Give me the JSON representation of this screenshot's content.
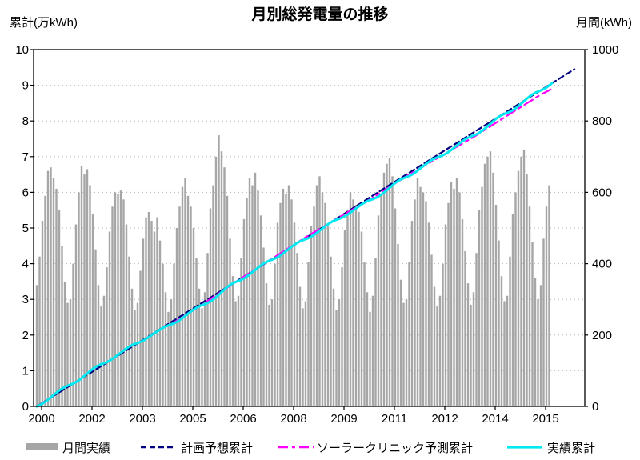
{
  "header": {
    "title": "月別総発電量の推移",
    "left_axis_corner_label": "累計(万kWh)",
    "right_axis_corner_label": "月間(kWh)"
  },
  "chart_data": {
    "type": "combo",
    "title": "月別総発電量の推移",
    "grid": true,
    "legend_position": "bottom",
    "left_axis": {
      "label": "累計(万kWh)",
      "min": 0,
      "max": 10,
      "tick_step": 1,
      "tick_labels": [
        "0",
        "1",
        "2",
        "3",
        "4",
        "5",
        "6",
        "7",
        "8",
        "9",
        "10"
      ]
    },
    "right_axis": {
      "label": "月間(kWh)",
      "min": 0,
      "max": 1000,
      "tick_step": 200,
      "tick_labels": [
        "0",
        "200",
        "400",
        "600",
        "800",
        "1000"
      ]
    },
    "x_axis": {
      "start": "2000-01",
      "end_bars": "2015-04",
      "tick_labels": [
        "2000",
        "2002",
        "2003",
        "2005",
        "2006",
        "2008",
        "2009",
        "2011",
        "2012",
        "2014",
        "2015"
      ]
    },
    "series": [
      {
        "name": "月間実績",
        "type": "bar",
        "axis": "right",
        "color": "#a6a6a6",
        "start_month": "2000-01",
        "values_kwh": [
          340,
          420,
          520,
          590,
          660,
          670,
          640,
          610,
          550,
          450,
          350,
          290,
          300,
          400,
          510,
          600,
          675,
          650,
          665,
          620,
          540,
          440,
          340,
          280,
          310,
          390,
          490,
          560,
          600,
          595,
          605,
          580,
          510,
          420,
          330,
          270,
          290,
          380,
          470,
          530,
          545,
          520,
          490,
          530,
          465,
          400,
          320,
          265,
          300,
          400,
          500,
          560,
          615,
          640,
          590,
          560,
          500,
          415,
          330,
          275,
          320,
          430,
          555,
          620,
          700,
          760,
          715,
          670,
          590,
          470,
          365,
          295,
          310,
          415,
          525,
          585,
          640,
          620,
          655,
          605,
          535,
          445,
          345,
          285,
          300,
          400,
          515,
          570,
          610,
          595,
          620,
          580,
          515,
          430,
          335,
          275,
          295,
          405,
          505,
          560,
          620,
          645,
          600,
          570,
          505,
          420,
          330,
          270,
          300,
          390,
          495,
          550,
          600,
          580,
          565,
          545,
          490,
          405,
          320,
          265,
          310,
          415,
          535,
          595,
          655,
          680,
          695,
          645,
          555,
          455,
          355,
          290,
          300,
          405,
          520,
          580,
          640,
          615,
          600,
          575,
          515,
          425,
          335,
          280,
          310,
          400,
          510,
          570,
          630,
          610,
          640,
          600,
          525,
          435,
          345,
          285,
          320,
          430,
          550,
          615,
          680,
          700,
          715,
          655,
          565,
          465,
          365,
          295,
          310,
          420,
          540,
          600,
          660,
          700,
          720,
          650,
          560,
          460,
          360,
          300,
          340,
          470,
          560,
          620
        ]
      },
      {
        "name": "計画予想累計",
        "type": "line",
        "style": "dashed",
        "axis": "left",
        "color": "#000080",
        "points": [
          [
            2000.0,
            0
          ],
          [
            2001,
            0.59
          ],
          [
            2002,
            1.18
          ],
          [
            2003,
            1.77
          ],
          [
            2004,
            2.36
          ],
          [
            2005,
            2.95
          ],
          [
            2006,
            3.54
          ],
          [
            2007,
            4.13
          ],
          [
            2008,
            4.72
          ],
          [
            2009,
            5.31
          ],
          [
            2010,
            5.91
          ],
          [
            2011,
            6.5
          ],
          [
            2012,
            7.09
          ],
          [
            2013,
            7.68
          ],
          [
            2014,
            8.27
          ],
          [
            2015,
            8.86
          ],
          [
            2016,
            9.45
          ]
        ]
      },
      {
        "name": "ソーラークリニック予測累計",
        "type": "line",
        "style": "dash-dot",
        "axis": "left",
        "color": "#ff00ff",
        "points": [
          [
            2004.0,
            2.3
          ],
          [
            2005,
            2.9
          ],
          [
            2006,
            3.54
          ],
          [
            2007,
            4.14
          ],
          [
            2008,
            4.74
          ],
          [
            2009,
            5.3
          ],
          [
            2010,
            5.85
          ],
          [
            2011,
            6.45
          ],
          [
            2012,
            7.0
          ],
          [
            2013,
            7.55
          ],
          [
            2014,
            8.15
          ],
          [
            2015,
            8.74
          ],
          [
            2015.33,
            8.9
          ]
        ]
      },
      {
        "name": "実績累計",
        "type": "line",
        "style": "solid",
        "axis": "left",
        "color": "#00e8f0",
        "derived": "cumulative_sum_of_monthly_bars_div_10000",
        "yearly_checkpoints": [
          [
            2000,
            0
          ],
          [
            2001,
            0.61
          ],
          [
            2002,
            1.21
          ],
          [
            2003,
            1.78
          ],
          [
            2004,
            2.3
          ],
          [
            2005,
            2.87
          ],
          [
            2006,
            3.52
          ],
          [
            2007,
            4.11
          ],
          [
            2008,
            4.69
          ],
          [
            2009,
            5.26
          ],
          [
            2010,
            5.81
          ],
          [
            2011,
            6.43
          ],
          [
            2012,
            7.01
          ],
          [
            2013,
            7.59
          ],
          [
            2014,
            8.23
          ],
          [
            2015,
            8.86
          ],
          [
            2015.33,
            9.05
          ]
        ]
      }
    ]
  }
}
